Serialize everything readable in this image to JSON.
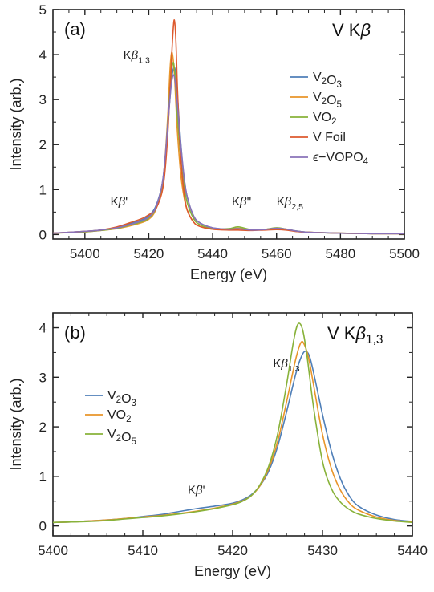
{
  "chart_data": [
    {
      "type": "line",
      "panel_label": "(a)",
      "title": "V Kβ",
      "xlabel": "Energy (eV)",
      "ylabel": "Intensity (arb.)",
      "xlim": [
        5390,
        5500
      ],
      "ylim": [
        -0.1,
        5
      ],
      "xticks": [
        5400,
        5420,
        5440,
        5460,
        5480,
        5500
      ],
      "yticks": [
        0,
        1,
        2,
        3,
        4,
        5
      ],
      "legend_position": "right",
      "annotations": [
        {
          "text": "Kβ1,3",
          "x": 5412,
          "y": 3.9
        },
        {
          "text": "Kβ'",
          "x": 5408,
          "y": 0.65
        },
        {
          "text": "Kβ''",
          "x": 5446,
          "y": 0.65
        },
        {
          "text": "Kβ2,5",
          "x": 5460,
          "y": 0.65
        }
      ],
      "series": [
        {
          "name": "V2O3",
          "color": "#4f7fb8",
          "peak": 3.72,
          "center": 5428.0,
          "width": 1.45,
          "x": [
            5390,
            5400,
            5405,
            5410,
            5414,
            5418,
            5420,
            5422,
            5424,
            5425,
            5426,
            5427,
            5427.5,
            5428,
            5428.5,
            5429,
            5430,
            5431,
            5432,
            5434,
            5436,
            5440,
            5445,
            5448,
            5452,
            5456,
            5460,
            5463,
            5466,
            5470,
            5480,
            5490,
            5500
          ],
          "y": [
            0.03,
            0.07,
            0.1,
            0.16,
            0.24,
            0.33,
            0.42,
            0.6,
            1.05,
            1.55,
            2.45,
            3.35,
            3.62,
            3.72,
            3.55,
            3.05,
            2.05,
            1.3,
            0.85,
            0.42,
            0.26,
            0.15,
            0.12,
            0.13,
            0.1,
            0.11,
            0.14,
            0.12,
            0.08,
            0.05,
            0.03,
            0.02,
            0.02
          ]
        },
        {
          "name": "V2O5",
          "color": "#e8952a",
          "peak": 4.02,
          "center": 5427.2,
          "width": 1.2,
          "x": [
            5390,
            5400,
            5405,
            5410,
            5414,
            5418,
            5420,
            5422,
            5424,
            5425,
            5426,
            5426.6,
            5427,
            5427.4,
            5428,
            5428.5,
            5429,
            5430,
            5431,
            5432,
            5434,
            5436,
            5440,
            5445,
            5448,
            5452,
            5456,
            5460,
            5463,
            5466,
            5470,
            5480,
            5490,
            5500
          ],
          "y": [
            0.03,
            0.06,
            0.09,
            0.13,
            0.19,
            0.27,
            0.34,
            0.52,
            1.0,
            1.6,
            2.7,
            3.6,
            3.98,
            4.02,
            3.6,
            2.9,
            2.25,
            1.35,
            0.85,
            0.55,
            0.28,
            0.18,
            0.12,
            0.12,
            0.14,
            0.1,
            0.11,
            0.13,
            0.11,
            0.07,
            0.05,
            0.03,
            0.02,
            0.02
          ]
        },
        {
          "name": "VO2",
          "color": "#88b23a",
          "peak": 3.82,
          "center": 5427.6,
          "width": 1.35,
          "x": [
            5390,
            5400,
            5405,
            5410,
            5414,
            5418,
            5420,
            5422,
            5424,
            5425,
            5426,
            5427,
            5427.6,
            5428,
            5428.5,
            5429,
            5430,
            5431,
            5432,
            5434,
            5436,
            5440,
            5445,
            5448,
            5452,
            5456,
            5460,
            5463,
            5466,
            5470,
            5480,
            5490,
            5500
          ],
          "y": [
            0.03,
            0.06,
            0.09,
            0.14,
            0.21,
            0.29,
            0.37,
            0.55,
            1.02,
            1.55,
            2.55,
            3.55,
            3.82,
            3.7,
            3.2,
            2.6,
            1.7,
            1.1,
            0.72,
            0.36,
            0.22,
            0.13,
            0.13,
            0.17,
            0.11,
            0.11,
            0.15,
            0.12,
            0.08,
            0.05,
            0.03,
            0.02,
            0.02
          ]
        },
        {
          "name": "V Foil",
          "color": "#dd5a2e",
          "peak": 4.77,
          "center": 5428.0,
          "width": 1.0,
          "x": [
            5390,
            5400,
            5405,
            5410,
            5414,
            5418,
            5420,
            5422,
            5424,
            5425,
            5426,
            5427,
            5427.5,
            5428,
            5428.5,
            5429,
            5430,
            5431,
            5432,
            5434,
            5436,
            5440,
            5445,
            5448,
            5452,
            5456,
            5460,
            5463,
            5466,
            5470,
            5480,
            5490,
            5500
          ],
          "y": [
            0.03,
            0.07,
            0.1,
            0.17,
            0.26,
            0.36,
            0.44,
            0.55,
            0.9,
            1.35,
            2.3,
            3.7,
            4.4,
            4.77,
            4.3,
            3.2,
            1.7,
            0.95,
            0.55,
            0.28,
            0.18,
            0.12,
            0.1,
            0.1,
            0.09,
            0.1,
            0.11,
            0.1,
            0.07,
            0.05,
            0.03,
            0.02,
            0.02
          ]
        },
        {
          "name": "ϵ−VOPO4",
          "color": "#8a72b8",
          "peak": 3.55,
          "center": 5427.8,
          "width": 1.5,
          "x": [
            5390,
            5400,
            5405,
            5410,
            5414,
            5418,
            5420,
            5422,
            5424,
            5425,
            5426,
            5427,
            5427.8,
            5428.5,
            5429,
            5430,
            5431,
            5432,
            5434,
            5436,
            5440,
            5445,
            5448,
            5452,
            5456,
            5460,
            5463,
            5466,
            5470,
            5480,
            5490,
            5500
          ],
          "y": [
            0.03,
            0.07,
            0.1,
            0.15,
            0.22,
            0.31,
            0.39,
            0.57,
            1.05,
            1.6,
            2.5,
            3.3,
            3.55,
            3.25,
            2.85,
            2.0,
            1.3,
            0.85,
            0.42,
            0.26,
            0.15,
            0.12,
            0.13,
            0.1,
            0.11,
            0.14,
            0.12,
            0.08,
            0.05,
            0.03,
            0.02,
            0.02
          ]
        }
      ]
    },
    {
      "type": "line",
      "panel_label": "(b)",
      "title": "V Kβ1,3",
      "xlabel": "Energy (eV)",
      "ylabel": "Intensity (arb.)",
      "xlim": [
        5400,
        5440
      ],
      "ylim": [
        -0.2,
        4.3
      ],
      "xticks": [
        5400,
        5410,
        5420,
        5430,
        5440
      ],
      "yticks": [
        0,
        1,
        2,
        3,
        4
      ],
      "legend_position": "left",
      "annotations": [
        {
          "text": "Kβ1,3",
          "x": 5424.5,
          "y": 3.2
        },
        {
          "text": "Kβ'",
          "x": 5415,
          "y": 0.65
        }
      ],
      "series": [
        {
          "name": "V2O3",
          "color": "#4f7fb8",
          "x": [
            5400,
            5402,
            5404,
            5406,
            5408,
            5410,
            5412,
            5414,
            5416,
            5418,
            5420,
            5421,
            5422,
            5423,
            5424,
            5425,
            5426,
            5427,
            5427.5,
            5428,
            5428.5,
            5429,
            5430,
            5431,
            5432,
            5433,
            5434,
            5436,
            5438,
            5440
          ],
          "y": [
            0.07,
            0.08,
            0.1,
            0.12,
            0.15,
            0.19,
            0.23,
            0.29,
            0.35,
            0.4,
            0.46,
            0.52,
            0.62,
            0.8,
            1.1,
            1.6,
            2.3,
            3.05,
            3.35,
            3.52,
            3.45,
            3.1,
            2.25,
            1.5,
            0.95,
            0.6,
            0.4,
            0.22,
            0.13,
            0.09
          ]
        },
        {
          "name": "VO2",
          "color": "#e8952a",
          "x": [
            5400,
            5402,
            5404,
            5406,
            5408,
            5410,
            5412,
            5414,
            5416,
            5418,
            5420,
            5421,
            5422,
            5423,
            5424,
            5425,
            5426,
            5427,
            5427.6,
            5428,
            5428.5,
            5429,
            5430,
            5431,
            5432,
            5433,
            5434,
            5436,
            5438,
            5440
          ],
          "y": [
            0.07,
            0.08,
            0.1,
            0.12,
            0.15,
            0.18,
            0.21,
            0.25,
            0.3,
            0.36,
            0.44,
            0.5,
            0.6,
            0.8,
            1.15,
            1.7,
            2.5,
            3.35,
            3.7,
            3.65,
            3.35,
            2.85,
            1.85,
            1.15,
            0.72,
            0.46,
            0.32,
            0.18,
            0.11,
            0.08
          ]
        },
        {
          "name": "V2O5",
          "color": "#88b23a",
          "x": [
            5400,
            5402,
            5404,
            5406,
            5408,
            5410,
            5412,
            5414,
            5416,
            5418,
            5420,
            5421,
            5422,
            5423,
            5424,
            5425,
            5426,
            5426.8,
            5427.3,
            5427.8,
            5428.3,
            5429,
            5430,
            5431,
            5432,
            5433,
            5434,
            5436,
            5438,
            5440
          ],
          "y": [
            0.07,
            0.08,
            0.09,
            0.11,
            0.14,
            0.17,
            0.2,
            0.24,
            0.29,
            0.35,
            0.43,
            0.49,
            0.6,
            0.82,
            1.2,
            1.85,
            2.85,
            3.75,
            4.08,
            3.95,
            3.4,
            2.4,
            1.3,
            0.75,
            0.48,
            0.33,
            0.24,
            0.15,
            0.1,
            0.07
          ]
        }
      ]
    }
  ]
}
